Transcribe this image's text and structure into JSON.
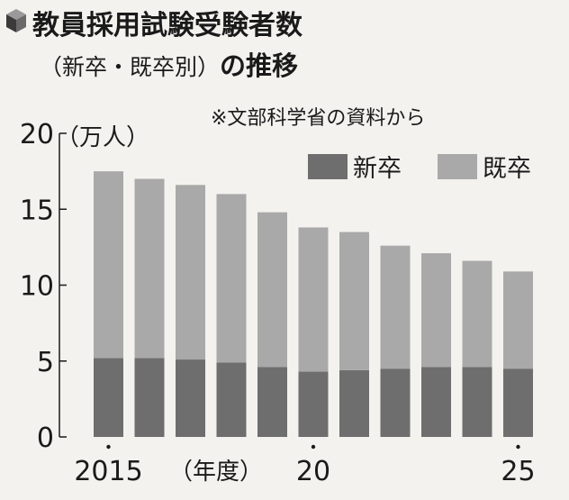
{
  "header": {
    "title": "教員採用試験受験者数",
    "subtitle_paren": "（新卒・既卒別）",
    "subtitle_suffix": "の推移",
    "source_note": "※文部科学省の資料から"
  },
  "colors": {
    "new_grad": "#6e6e6e",
    "prior_grad": "#a9a9a9",
    "axis": "#1a1a1a"
  },
  "chart_data": {
    "type": "bar",
    "stacked": true,
    "x": [
      2015,
      2016,
      2017,
      2018,
      2019,
      2020,
      2021,
      2022,
      2023,
      2024,
      2025
    ],
    "series": [
      {
        "name": "新卒",
        "values": [
          5.2,
          5.2,
          5.1,
          4.9,
          4.6,
          4.3,
          4.4,
          4.5,
          4.6,
          4.6,
          4.5
        ]
      },
      {
        "name": "既卒",
        "values": [
          12.3,
          11.8,
          11.5,
          11.1,
          10.2,
          9.5,
          9.1,
          8.1,
          7.5,
          7.0,
          6.4
        ]
      }
    ],
    "ylim": [
      0,
      20
    ],
    "yticks": [
      "0",
      "5",
      "10",
      "15",
      "20"
    ],
    "yunit": "（万人）",
    "xtick_labels": [
      {
        "label": "2015",
        "x": 2015
      },
      {
        "label": "20",
        "x": 2020
      },
      {
        "label": "25",
        "x": 2025
      }
    ],
    "xnote": "（年度）",
    "legend_position": "top-right"
  }
}
